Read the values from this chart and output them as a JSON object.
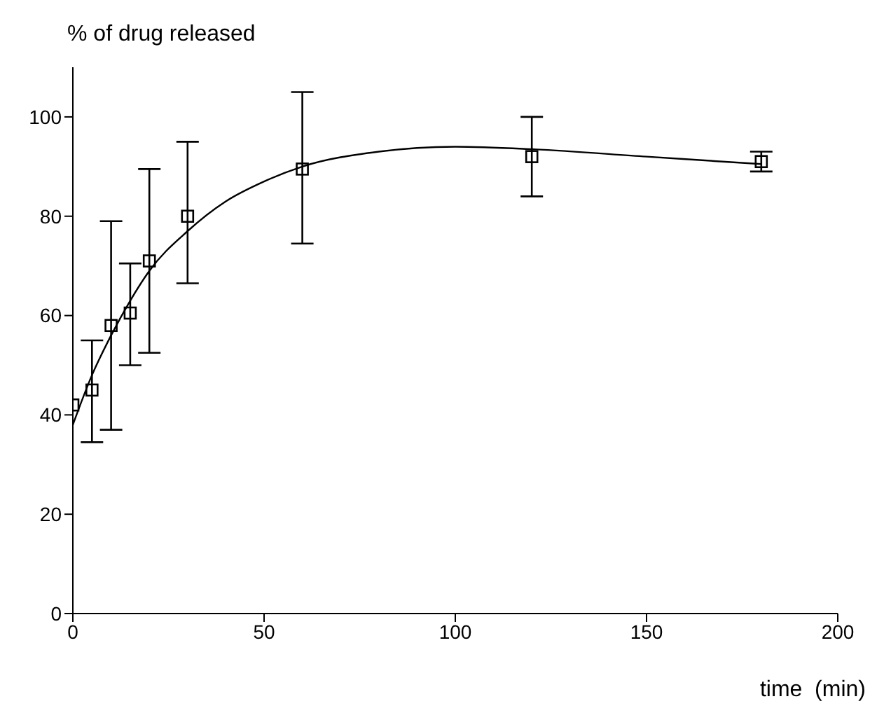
{
  "chart_data": {
    "type": "scatter",
    "xlabel": "time  (min)",
    "ylabel": "% of drug released",
    "xlim": [
      0,
      200
    ],
    "xticks": [
      0,
      50,
      100,
      150,
      200
    ],
    "ylim": [
      0,
      110
    ],
    "yticks": [
      0,
      20,
      40,
      60,
      80,
      100
    ],
    "marker": "square",
    "series": [
      {
        "color": "#000000",
        "x": [
          0,
          5,
          10,
          15,
          20,
          30,
          60,
          120,
          180
        ],
        "values": [
          42,
          45,
          58,
          60.5,
          71,
          80,
          89.5,
          92,
          91
        ],
        "errors": [
          null,
          [
            34.5,
            55
          ],
          [
            37,
            79
          ],
          [
            50,
            70.5
          ],
          [
            52.5,
            89.5
          ],
          [
            66.5,
            95
          ],
          [
            74.5,
            105
          ],
          [
            84,
            100
          ],
          [
            89,
            93
          ]
        ]
      },
      {
        "type": "line",
        "color": "#000000",
        "marker": "none",
        "x": [
          0,
          5,
          10,
          15,
          20,
          30,
          40,
          50,
          60,
          80,
          100,
          120,
          150,
          180
        ],
        "values": [
          38,
          48,
          56,
          63,
          69,
          77,
          83,
          87,
          90,
          93,
          94,
          93.5,
          92,
          90.5
        ]
      }
    ]
  }
}
